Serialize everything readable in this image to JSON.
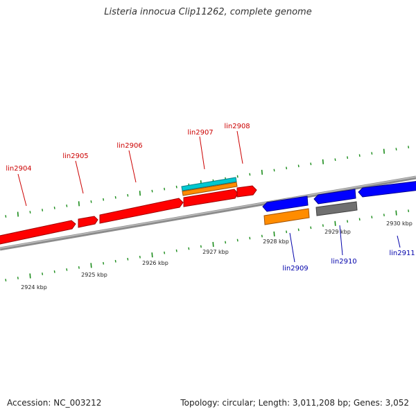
{
  "title": "Listeria innocua Clip11262, complete genome",
  "footer": {
    "accession": "Accession: NC_003212",
    "summary": "Topology: circular; Length: 3,011,208 bp; Genes: 3,052"
  },
  "colors": {
    "forward_gene": "#ff0000",
    "reverse_gene": "#0000ff",
    "cds_orange": "#ff8c00",
    "cds_cyan": "#00c8d0",
    "cds_gray": "#707070",
    "backbone": "#8c8c8c",
    "tick": "#1a8c1a",
    "forward_label": "#cc0000",
    "reverse_label": "#0000aa"
  },
  "scale_labels": [
    "2924 kbp",
    "2925 kbp",
    "2926 kbp",
    "2927 kbp",
    "2928 kbp",
    "2929 kbp",
    "2930 kbp"
  ],
  "genes_forward": [
    "lin2904",
    "lin2905",
    "lin2906",
    "lin2907",
    "lin2908"
  ],
  "genes_reverse": [
    "lin2909",
    "lin2910",
    "lin2911"
  ]
}
